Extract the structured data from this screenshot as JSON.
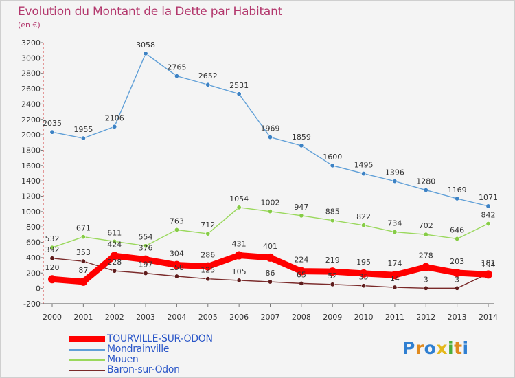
{
  "title": "Evolution du Montant de la Dette par Habitant",
  "subtitle": "(en €)",
  "brand": "Proxiti",
  "chart_data": {
    "type": "line",
    "title": "Evolution du Montant de la Dette par Habitant",
    "subtitle": "(en €)",
    "ylim": [
      -200,
      3200
    ],
    "y_ticks": [
      -200,
      0,
      200,
      400,
      600,
      800,
      1000,
      1200,
      1400,
      1600,
      1800,
      2000,
      2200,
      2400,
      2600,
      2800,
      3000,
      3200
    ],
    "x": [
      "2000",
      "2001",
      "2002",
      "2003",
      "2004",
      "2005",
      "2006",
      "2007",
      "2008",
      "2009",
      "2010",
      "2011",
      "2012",
      "2013",
      "2014"
    ],
    "grid": false,
    "legend_position": "bottom-left",
    "series": [
      {
        "name": "TOURVILLE-SUR-ODON",
        "color": "#ff0000",
        "values": [
          120,
          87,
          424,
          376,
          304,
          286,
          431,
          401,
          224,
          219,
          195,
          174,
          278,
          203,
          181
        ]
      },
      {
        "name": "Mondrainville",
        "color": "#5f9fd7",
        "values": [
          2035,
          1955,
          2106,
          3058,
          2765,
          2652,
          2531,
          1969,
          1859,
          1600,
          1495,
          1396,
          1280,
          1169,
          1071
        ]
      },
      {
        "name": "Mouen",
        "color": "#9ad85c",
        "values": [
          532,
          671,
          611,
          554,
          763,
          712,
          1054,
          1002,
          947,
          885,
          822,
          734,
          702,
          646,
          842
        ]
      },
      {
        "name": "Baron-sur-Odon",
        "color": "#7a2a2a",
        "values": [
          392,
          353,
          228,
          197,
          158,
          125,
          105,
          86,
          65,
          52,
          35,
          14,
          3,
          3,
          194
        ]
      }
    ]
  }
}
